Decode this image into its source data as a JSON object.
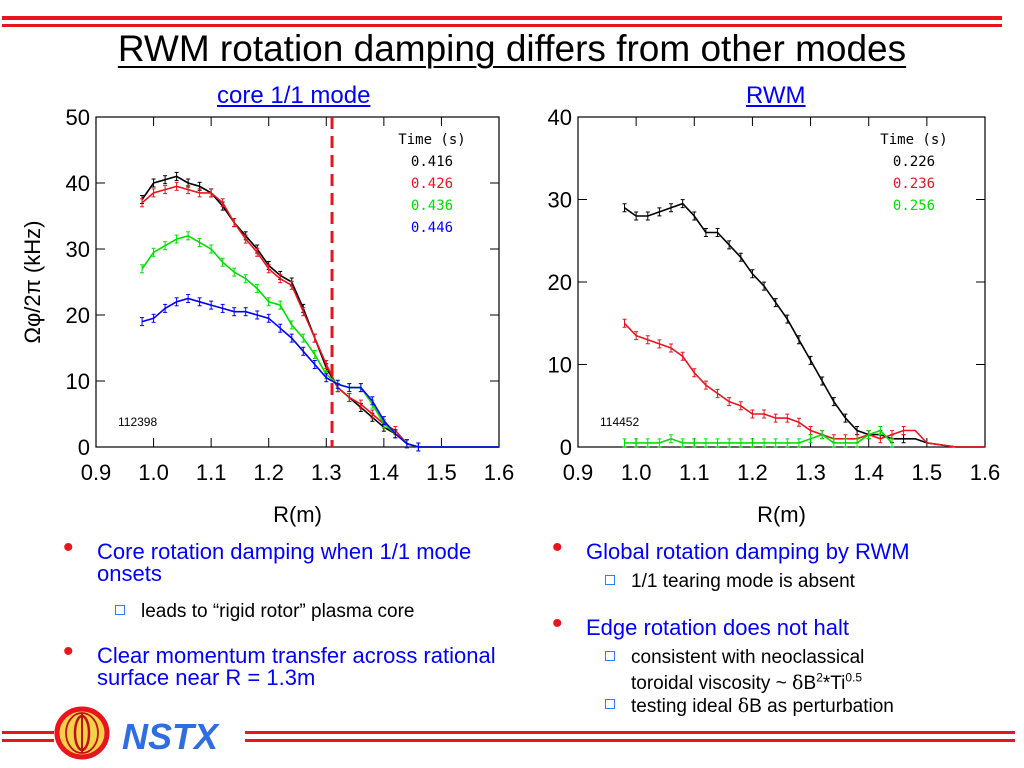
{
  "slide": {
    "title": "RWM rotation damping differs from other modes",
    "accent_color": "#e8141e",
    "bullet_color": "#0000ff"
  },
  "chart_data": [
    {
      "type": "line",
      "title": "core 1/1 mode",
      "xlabel": "R(m)",
      "ylabel": "Ωφ/2π (kHz)",
      "xlim": [
        0.9,
        1.6
      ],
      "ylim": [
        0,
        50
      ],
      "xticks": [
        "0.9",
        "1.0",
        "1.1",
        "1.2",
        "1.3",
        "1.4",
        "1.5",
        "1.6"
      ],
      "yticks": [
        "0",
        "10",
        "20",
        "30",
        "40",
        "50"
      ],
      "legend_title": "Time (s)",
      "legend_position": "top-right",
      "annotation": "112398",
      "vline": 1.31,
      "series": [
        {
          "name": "0.416",
          "color": "#000000",
          "x": [
            0.98,
            1.0,
            1.02,
            1.04,
            1.06,
            1.08,
            1.1,
            1.12,
            1.14,
            1.16,
            1.18,
            1.2,
            1.22,
            1.24,
            1.26,
            1.28,
            1.3,
            1.32,
            1.34,
            1.36,
            1.38,
            1.4,
            1.42,
            1.44,
            1.46,
            1.5,
            1.55,
            1.6
          ],
          "y": [
            37.5,
            40.0,
            40.5,
            41.0,
            40.0,
            39.5,
            38.5,
            36.5,
            34.0,
            32.0,
            30.0,
            27.5,
            26.0,
            25.0,
            21.0,
            16.5,
            12.0,
            9.0,
            7.5,
            6.0,
            4.5,
            3.0,
            2.0,
            0.5,
            0.0,
            0.0,
            0.0,
            0.0
          ]
        },
        {
          "name": "0.426",
          "color": "#e8141e",
          "x": [
            0.98,
            1.0,
            1.02,
            1.04,
            1.06,
            1.08,
            1.1,
            1.12,
            1.14,
            1.16,
            1.18,
            1.2,
            1.22,
            1.24,
            1.26,
            1.28,
            1.3,
            1.32,
            1.34,
            1.36,
            1.38,
            1.4,
            1.42,
            1.44,
            1.46,
            1.5,
            1.55,
            1.6
          ],
          "y": [
            37.0,
            38.5,
            39.0,
            39.5,
            39.0,
            38.5,
            38.5,
            37.0,
            34.0,
            31.5,
            29.5,
            27.0,
            25.5,
            24.5,
            20.5,
            16.5,
            12.5,
            9.0,
            7.5,
            6.5,
            5.0,
            3.5,
            2.5,
            0.5,
            0.0,
            0.0,
            0.0,
            0.0
          ]
        },
        {
          "name": "0.436",
          "color": "#00e000",
          "x": [
            0.98,
            1.0,
            1.02,
            1.04,
            1.06,
            1.08,
            1.1,
            1.12,
            1.14,
            1.16,
            1.18,
            1.2,
            1.22,
            1.24,
            1.26,
            1.28,
            1.3,
            1.32,
            1.34,
            1.36,
            1.38,
            1.4,
            1.42,
            1.44,
            1.46,
            1.5,
            1.55,
            1.6
          ],
          "y": [
            27.0,
            29.5,
            30.5,
            31.5,
            32.0,
            31.0,
            30.0,
            28.0,
            26.5,
            25.5,
            24.0,
            22.0,
            21.5,
            18.5,
            16.5,
            14.0,
            11.0,
            9.5,
            9.0,
            9.0,
            6.5,
            3.5,
            2.0,
            0.5,
            0.0,
            0.0,
            0.0,
            0.0
          ]
        },
        {
          "name": "0.446",
          "color": "#0000ff",
          "x": [
            0.98,
            1.0,
            1.02,
            1.04,
            1.06,
            1.08,
            1.1,
            1.12,
            1.14,
            1.16,
            1.18,
            1.2,
            1.22,
            1.24,
            1.26,
            1.28,
            1.3,
            1.32,
            1.34,
            1.36,
            1.38,
            1.4,
            1.42,
            1.44,
            1.46,
            1.5,
            1.55,
            1.6
          ],
          "y": [
            19.0,
            19.5,
            21.0,
            22.0,
            22.5,
            22.0,
            21.5,
            21.0,
            20.5,
            20.5,
            20.0,
            19.5,
            18.0,
            16.5,
            14.5,
            12.5,
            10.5,
            9.5,
            9.0,
            9.0,
            7.0,
            4.0,
            2.0,
            0.5,
            0.0,
            0.0,
            0.0,
            0.0
          ]
        }
      ]
    },
    {
      "type": "line",
      "title": "RWM",
      "xlabel": "R(m)",
      "ylabel": "",
      "xlim": [
        0.9,
        1.6
      ],
      "ylim": [
        0,
        40
      ],
      "xticks": [
        "0.9",
        "1.0",
        "1.1",
        "1.2",
        "1.3",
        "1.4",
        "1.5",
        "1.6"
      ],
      "yticks": [
        "0",
        "10",
        "20",
        "30",
        "40"
      ],
      "legend_title": "Time (s)",
      "legend_position": "top-right",
      "annotation": "114452",
      "series": [
        {
          "name": "0.226",
          "color": "#000000",
          "x": [
            0.98,
            1.0,
            1.02,
            1.04,
            1.06,
            1.08,
            1.1,
            1.12,
            1.14,
            1.16,
            1.18,
            1.2,
            1.22,
            1.24,
            1.26,
            1.28,
            1.3,
            1.32,
            1.34,
            1.36,
            1.38,
            1.4,
            1.42,
            1.44,
            1.46,
            1.48,
            1.5,
            1.55,
            1.6
          ],
          "y": [
            29.0,
            28.0,
            28.0,
            28.5,
            29.0,
            29.5,
            28.0,
            26.0,
            26.0,
            24.5,
            23.0,
            21.0,
            19.5,
            17.5,
            15.5,
            13.0,
            10.5,
            8.0,
            5.5,
            3.5,
            2.0,
            1.5,
            1.5,
            1.0,
            1.0,
            1.0,
            0.5,
            0.0,
            0.0
          ]
        },
        {
          "name": "0.236",
          "color": "#e8141e",
          "x": [
            0.98,
            1.0,
            1.02,
            1.04,
            1.06,
            1.08,
            1.1,
            1.12,
            1.14,
            1.16,
            1.18,
            1.2,
            1.22,
            1.24,
            1.26,
            1.28,
            1.3,
            1.32,
            1.34,
            1.36,
            1.38,
            1.4,
            1.42,
            1.44,
            1.46,
            1.48,
            1.5,
            1.55,
            1.6
          ],
          "y": [
            15.0,
            13.5,
            13.0,
            12.5,
            12.0,
            11.0,
            9.0,
            7.5,
            6.5,
            5.5,
            5.0,
            4.0,
            4.0,
            3.5,
            3.5,
            3.0,
            2.0,
            1.5,
            1.0,
            1.0,
            1.0,
            1.5,
            1.0,
            1.5,
            2.0,
            2.0,
            0.5,
            0.0,
            0.0
          ]
        },
        {
          "name": "0.256",
          "color": "#00e000",
          "x": [
            0.98,
            1.0,
            1.02,
            1.04,
            1.06,
            1.08,
            1.1,
            1.12,
            1.14,
            1.16,
            1.18,
            1.2,
            1.22,
            1.24,
            1.26,
            1.28,
            1.3,
            1.32,
            1.34,
            1.36,
            1.38,
            1.4,
            1.42,
            1.44
          ],
          "y": [
            0.5,
            0.5,
            0.5,
            0.5,
            1.0,
            0.5,
            0.5,
            0.5,
            0.5,
            0.5,
            0.5,
            0.5,
            0.5,
            0.5,
            0.5,
            0.5,
            1.0,
            1.5,
            0.5,
            0.5,
            0.5,
            1.5,
            2.0,
            0.5
          ]
        }
      ]
    }
  ],
  "left_bullets": [
    {
      "text": "Core rotation damping when 1/1 mode onsets",
      "sub": [
        "leads to “rigid rotor” plasma core"
      ]
    },
    {
      "text": "Clear momentum transfer across rational surface near R = 1.3m",
      "sub": []
    }
  ],
  "right_bullets": [
    {
      "text": "Global rotation damping by RWM",
      "sub": [
        "1/1 tearing mode is absent"
      ]
    },
    {
      "text": "Edge rotation does not halt",
      "sub": []
    }
  ],
  "right_sub2": {
    "line1": "consistent with neoclassical",
    "line2_pre": "toroidal viscosity ~ ",
    "delta": "δ",
    "b": "B",
    "sq": "2",
    "ti": "*Ti",
    "exp": "0.5",
    "line3_pre": "testing ideal ",
    "line3_post": "B as perturbation"
  },
  "footer": {
    "logo_text": "NSTX"
  }
}
